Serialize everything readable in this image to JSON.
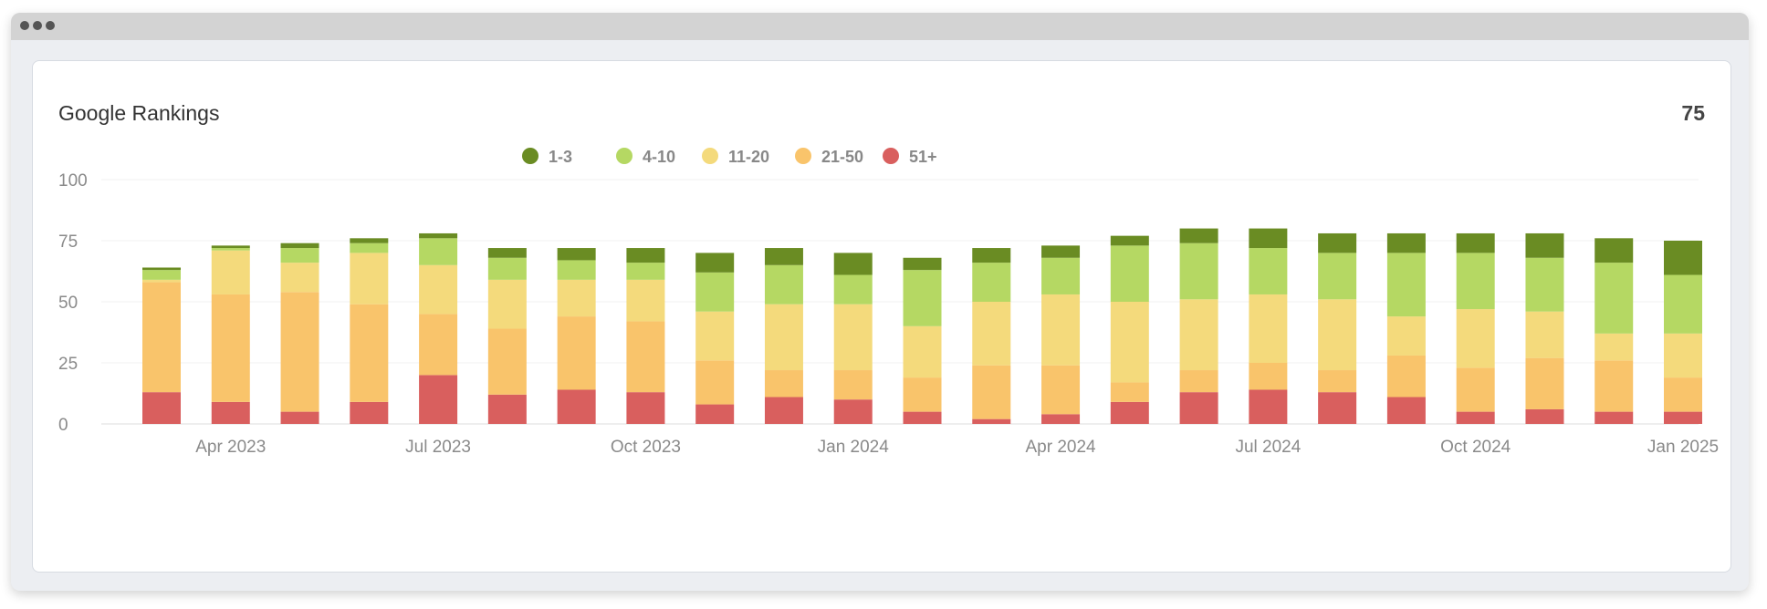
{
  "widget": {
    "title": "Google Rankings",
    "value": "75"
  },
  "chart_data": {
    "type": "bar",
    "stacked": true,
    "title": "",
    "xlabel": "",
    "ylabel": "",
    "ylim": [
      0,
      100
    ],
    "yticks": [
      0,
      25,
      50,
      75,
      100
    ],
    "grid": true,
    "legend_position": "top-center",
    "x_tick_labels": [
      "Apr 2023",
      "Jul 2023",
      "Oct 2023",
      "Jan 2024",
      "Apr 2024",
      "Jul 2024",
      "Oct 2024",
      "Jan 2025"
    ],
    "series": [
      {
        "name": "51+",
        "color": "#d95f5e",
        "values": [
          13,
          9,
          5,
          9,
          20,
          12,
          14,
          13,
          8,
          11,
          10,
          5,
          2,
          4,
          9,
          13,
          14,
          13,
          11,
          5,
          6,
          5,
          5
        ]
      },
      {
        "name": "21-50",
        "color": "#f9c46b",
        "values": [
          45,
          44,
          49,
          40,
          25,
          27,
          30,
          29,
          18,
          11,
          12,
          14,
          22,
          20,
          8,
          9,
          11,
          9,
          17,
          18,
          21,
          21,
          14
        ]
      },
      {
        "name": "11-20",
        "color": "#f4da7c",
        "values": [
          1,
          18,
          12,
          21,
          20,
          20,
          15,
          17,
          20,
          27,
          27,
          21,
          26,
          29,
          33,
          29,
          28,
          29,
          16,
          24,
          19,
          11,
          18
        ]
      },
      {
        "name": "4-10",
        "color": "#b5d863",
        "values": [
          4,
          1,
          6,
          4,
          11,
          9,
          8,
          7,
          16,
          16,
          12,
          23,
          16,
          15,
          23,
          23,
          19,
          19,
          26,
          23,
          22,
          29,
          24
        ]
      },
      {
        "name": "1-3",
        "color": "#6a8c23",
        "values": [
          1,
          1,
          2,
          2,
          2,
          4,
          5,
          6,
          8,
          7,
          9,
          5,
          6,
          5,
          4,
          6,
          8,
          8,
          8,
          8,
          10,
          10,
          14
        ]
      }
    ]
  }
}
